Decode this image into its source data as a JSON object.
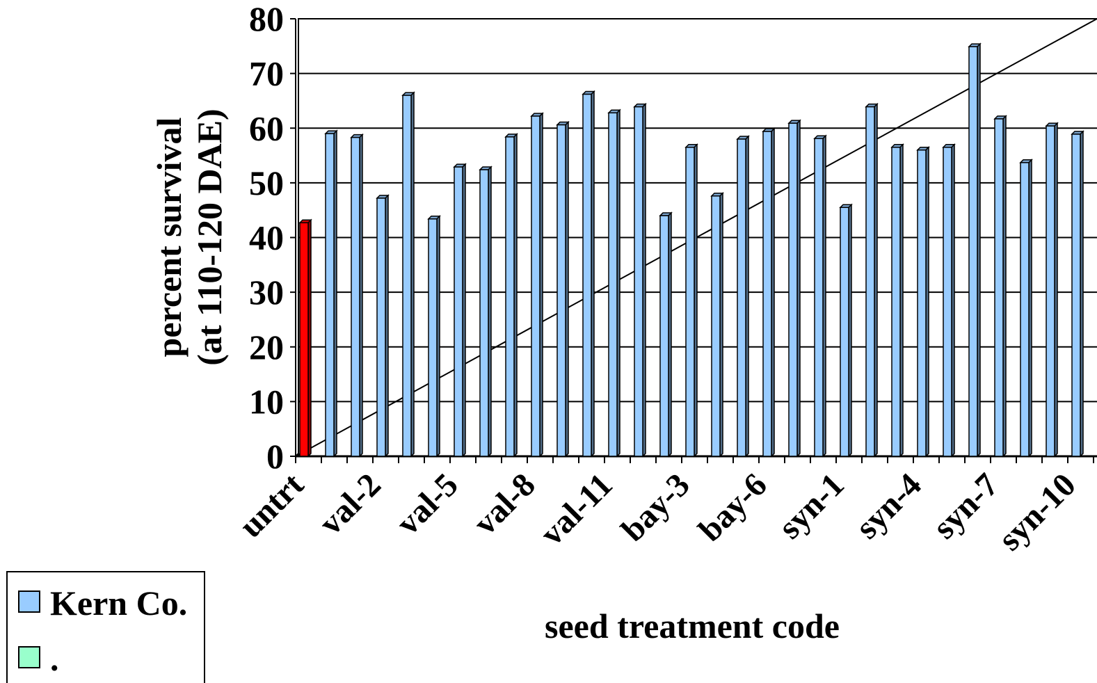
{
  "chart_data": {
    "type": "bar",
    "y_label_lines": [
      "percent survival",
      "(at 110-120 DAE)"
    ],
    "x_label": "seed treatment code",
    "categories": [
      "untrt",
      null,
      null,
      "val-2",
      null,
      null,
      "val-5",
      null,
      null,
      "val-8",
      null,
      null,
      "val-11",
      null,
      null,
      "bay-3",
      null,
      null,
      "bay-6",
      null,
      null,
      "syn-1",
      null,
      null,
      "syn-4",
      null,
      null,
      "syn-7",
      null,
      null,
      "syn-10"
    ],
    "values": [
      42.7,
      59.0,
      58.3,
      47.2,
      66.0,
      43.4,
      52.9,
      52.4,
      58.4,
      62.2,
      60.6,
      66.2,
      62.8,
      63.9,
      44.0,
      56.5,
      47.6,
      58.0,
      59.4,
      60.9,
      58.1,
      45.5,
      63.9,
      56.5,
      56.0,
      56.5,
      74.9,
      61.7,
      53.7,
      60.4,
      58.9
    ],
    "colors": [
      "#ff0000",
      "#99ccff",
      "#99ccff",
      "#99ccff",
      "#99ccff",
      "#99ccff",
      "#99ccff",
      "#99ccff",
      "#99ccff",
      "#99ccff",
      "#99ccff",
      "#99ccff",
      "#99ccff",
      "#99ccff",
      "#99ccff",
      "#99ccff",
      "#99ccff",
      "#99ccff",
      "#99ccff",
      "#99ccff",
      "#99ccff",
      "#99ccff",
      "#99ccff",
      "#99ccff",
      "#99ccff",
      "#99ccff",
      "#99ccff",
      "#99ccff",
      "#99ccff",
      "#99ccff",
      "#99ccff"
    ],
    "ylim": [
      0,
      80
    ],
    "yticks": [
      0,
      10,
      20,
      30,
      40,
      50,
      60,
      70,
      80
    ],
    "grid": true,
    "legend_position": "bottom-left",
    "legend": [
      {
        "name": "Kern Co.",
        "color": "#99ccff"
      },
      {
        "name": ".",
        "color": "#99ffcc"
      }
    ]
  }
}
